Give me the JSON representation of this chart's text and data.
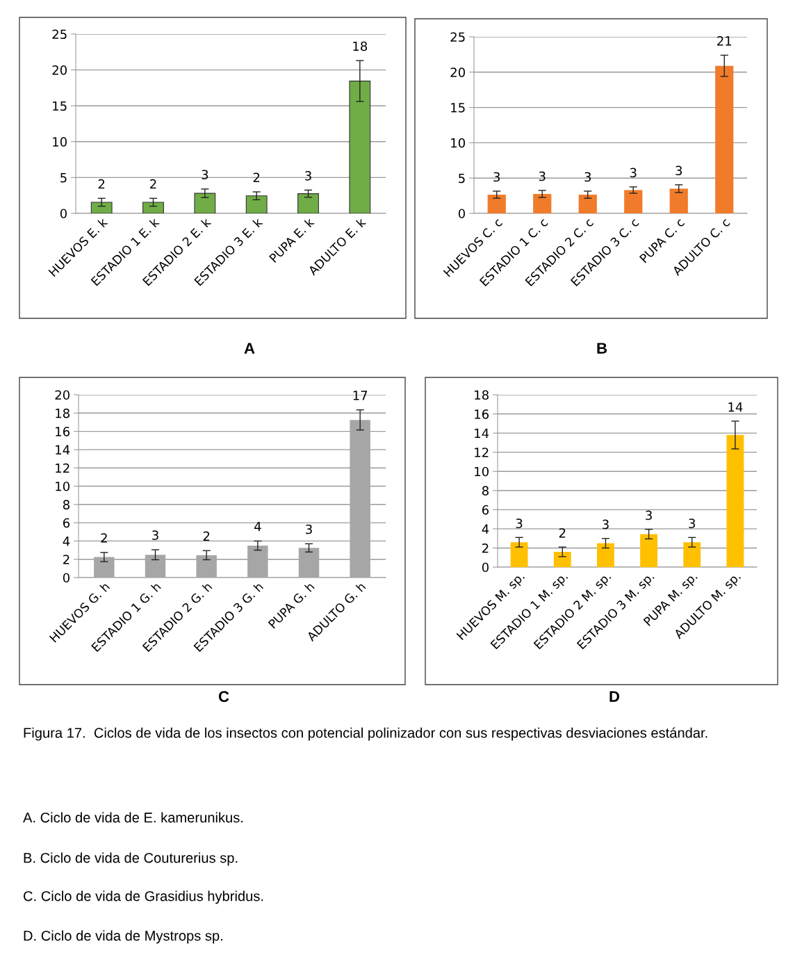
{
  "chart_data": [
    {
      "type": "bar",
      "categories": [
        "HUEVOS E. k",
        "ESTADIO 1 E. k",
        "ESTADIO 2 E. k",
        "ESTADIO 3 E. k",
        "PUPA E. k",
        "ADULTO E. k"
      ],
      "values": [
        1.55,
        1.55,
        2.8,
        2.45,
        2.75,
        18.45
      ],
      "errors": [
        0.55,
        0.55,
        0.6,
        0.55,
        0.5,
        2.85
      ],
      "value_labels": [
        "2",
        "2",
        "3",
        "2",
        "3",
        "18"
      ],
      "color": "#70ad47",
      "ylim": [
        0,
        25
      ],
      "yticks": [
        0,
        5,
        10,
        15,
        20,
        25
      ],
      "grid": "y",
      "annotations": [
        "A"
      ]
    },
    {
      "type": "bar",
      "categories": [
        "HUEVOS C. c",
        "ESTADIO 1 C. c",
        "ESTADIO 2 C. c",
        "ESTADIO 3 C. c",
        "PUPA C. c",
        "ADULTO C. c"
      ],
      "values": [
        2.65,
        2.75,
        2.65,
        3.3,
        3.5,
        20.9
      ],
      "errors": [
        0.5,
        0.5,
        0.5,
        0.45,
        0.55,
        1.5
      ],
      "value_labels": [
        "3",
        "3",
        "3",
        "3",
        "3",
        "21"
      ],
      "color": "#f07b2a",
      "ylim": [
        0,
        25
      ],
      "yticks": [
        0,
        5,
        10,
        15,
        20,
        25
      ],
      "grid": "y",
      "annotations": [
        "B"
      ]
    },
    {
      "type": "bar",
      "categories": [
        "HUEVOS G. h",
        "ESTADIO 1 G. h",
        "ESTADIO 2 G. h",
        "ESTADIO 3 G. h",
        "PUPA G. h",
        "ADULTO G. h"
      ],
      "values": [
        2.25,
        2.5,
        2.45,
        3.5,
        3.25,
        17.25
      ],
      "errors": [
        0.5,
        0.55,
        0.5,
        0.5,
        0.45,
        1.1
      ],
      "value_labels": [
        "2",
        "3",
        "2",
        "4",
        "3",
        "17"
      ],
      "color": "#a6a6a6",
      "ylim": [
        0,
        20
      ],
      "yticks": [
        0,
        2,
        4,
        6,
        8,
        10,
        12,
        14,
        16,
        18,
        20
      ],
      "grid": "y",
      "annotations": [
        "C"
      ]
    },
    {
      "type": "bar",
      "categories": [
        "HUEVOS M. sp.",
        "ESTADIO 1 M. sp.",
        "ESTADIO 2 M. sp.",
        "ESTADIO 3 M. sp.",
        "PUPA M. sp.",
        "ADULTO M. sp."
      ],
      "values": [
        2.6,
        1.6,
        2.5,
        3.45,
        2.6,
        13.8
      ],
      "errors": [
        0.5,
        0.5,
        0.5,
        0.5,
        0.5,
        1.45
      ],
      "value_labels": [
        "3",
        "2",
        "3",
        "3",
        "3",
        "14"
      ],
      "color": "#ffc000",
      "ylim": [
        0,
        18
      ],
      "yticks": [
        0,
        2,
        4,
        6,
        8,
        10,
        12,
        14,
        16,
        18
      ],
      "grid": "y",
      "annotations": [
        "D"
      ]
    },
    {
      "type": "other",
      "annotations": [
        "Figura 17.  Ciclos de vida de los insectos con potencial polinizador con sus respectivas desviaciones estándar.",
        "A. Ciclo de vida de E. kamerunikus.",
        "B. Ciclo de vida de Couturerius sp.",
        "C. Ciclo de vida de Grasidius hybridus.",
        "D. Ciclo de vida de Mystrops sp."
      ]
    }
  ]
}
